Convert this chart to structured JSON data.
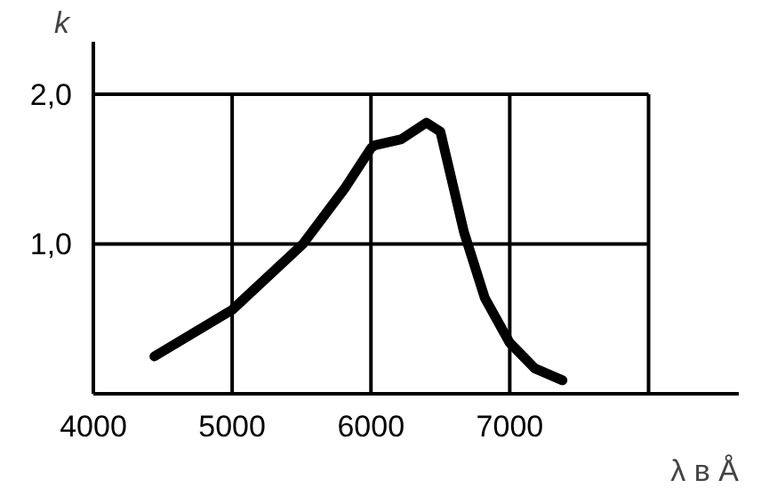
{
  "chart_data": {
    "type": "line",
    "xlabel": "λ в Å",
    "ylabel": "k",
    "x": [
      4440,
      5000,
      5510,
      5810,
      6000,
      6030,
      6220,
      6400,
      6500,
      6670,
      6820,
      7000,
      7180,
      7380
    ],
    "series": [
      {
        "color": "#000000",
        "values": [
          0.25,
          0.56,
          1.0,
          1.37,
          1.64,
          1.66,
          1.7,
          1.81,
          1.75,
          1.08,
          0.64,
          0.34,
          0.17,
          0.09
        ]
      }
    ],
    "xlim": [
      4000,
      8650
    ],
    "ylim": [
      0,
      2.35
    ],
    "xticks": [
      4000,
      5000,
      6000,
      7000,
      {
        "value": 8000,
        "label": null
      }
    ],
    "yticks": [
      {
        "value": 1.0,
        "label": "1,0"
      },
      {
        "value": 2.0,
        "label": "2,0"
      }
    ],
    "grid": true,
    "marker": "none",
    "line_style": "solid"
  }
}
